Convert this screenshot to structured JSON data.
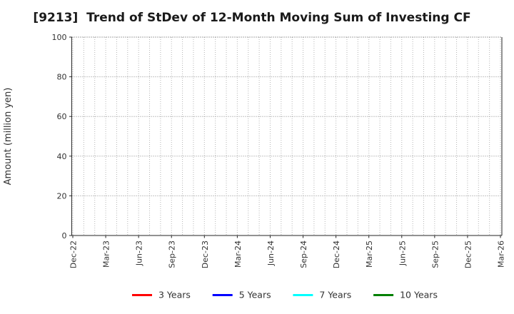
{
  "chart_data": {
    "type": "line",
    "title": "[9213]  Trend of StDev of 12-Month Moving Sum of Investing CF",
    "ylabel": "Amount (million yen)",
    "xlabel": "",
    "ylim": [
      0,
      100
    ],
    "yticks": [
      0,
      20,
      40,
      60,
      80,
      100
    ],
    "x_tick_labels": [
      "Dec-22",
      "Mar-23",
      "Jun-23",
      "Sep-23",
      "Dec-23",
      "Mar-24",
      "Jun-24",
      "Sep-24",
      "Dec-24",
      "Mar-25",
      "Jun-25",
      "Sep-25",
      "Dec-25",
      "Mar-26"
    ],
    "months_per_label": 3,
    "total_months": 40,
    "grid": true,
    "legend_position": "bottom",
    "series": [
      {
        "name": "3 Years",
        "color": "#ff0000",
        "values": []
      },
      {
        "name": "5 Years",
        "color": "#0000ff",
        "values": []
      },
      {
        "name": "7 Years",
        "color": "#00ffff",
        "values": []
      },
      {
        "name": "10 Years",
        "color": "#008000",
        "values": []
      }
    ],
    "colors": {
      "spine": "#262626",
      "grid_vertical": "#b5b5b5",
      "grid_horizontal": "#8a8a8a",
      "grid_top": "#4d4d4d",
      "tick_text": "#333333",
      "legend_text": "#333333"
    }
  }
}
